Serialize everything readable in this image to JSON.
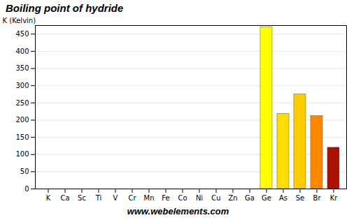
{
  "chart_data": {
    "type": "bar",
    "title": "Boiling point of hydride",
    "y_label": "K (Kelvin)",
    "annotations": [
      "www.webelements.com"
    ],
    "categories": [
      "K",
      "Ca",
      "Sc",
      "Ti",
      "V",
      "Cr",
      "Mn",
      "Fe",
      "Co",
      "Ni",
      "Cu",
      "Zn",
      "Ga",
      "Ge",
      "As",
      "Se",
      "Br",
      "Kr"
    ],
    "values": [
      0,
      0,
      0,
      0,
      0,
      0,
      0,
      0,
      0,
      0,
      0,
      0,
      0,
      470,
      218,
      275,
      212,
      120
    ],
    "colors": [
      "#ffff00",
      "#ffff00",
      "#ffff00",
      "#ffff00",
      "#ffff00",
      "#ffff00",
      "#ffff00",
      "#ffff00",
      "#ffff00",
      "#ffff00",
      "#ffff00",
      "#ffff00",
      "#ffff00",
      "#ffff00",
      "#ffdd00",
      "#ffcc00",
      "#ff8800",
      "#aa1100"
    ],
    "ylim": [
      0,
      475
    ],
    "yticks": [
      0,
      50,
      100,
      150,
      200,
      250,
      300,
      350,
      400,
      450
    ],
    "grid": true
  }
}
